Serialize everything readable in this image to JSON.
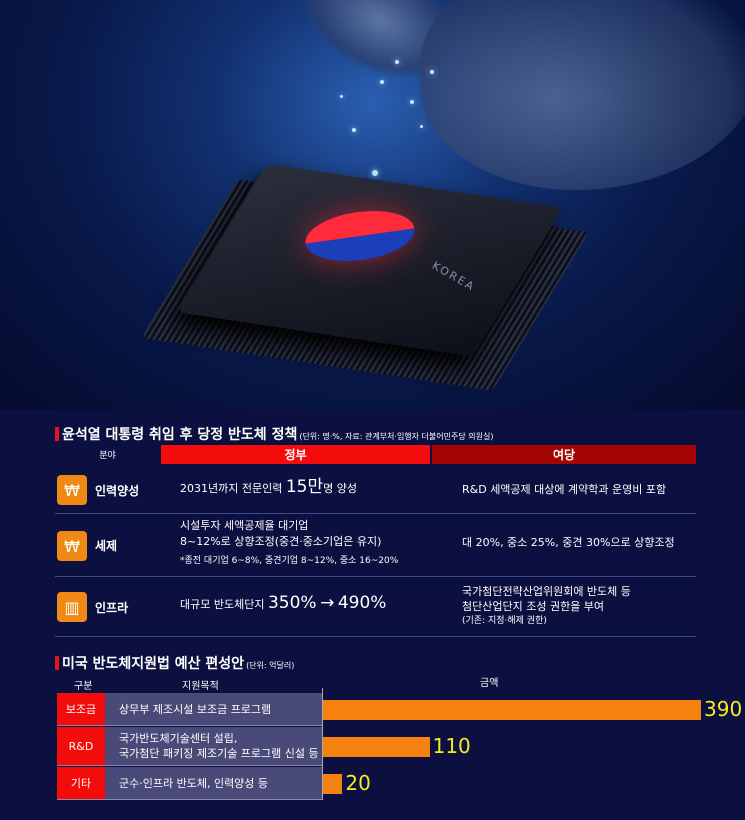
{
  "hero": {
    "chip_text": "KOREA"
  },
  "policy": {
    "title": "윤석열 대통령 취임 후 당정 반도체 정책",
    "unit_note": "(단위: 명·%, 자료: 관계부처·임행자 더불어민주당 의원실)",
    "headers": {
      "field": "분야",
      "gov": "정부",
      "party": "여당"
    },
    "colors": {
      "gov": "#f40b0b",
      "party": "#a30404",
      "icon_bg": "#f08a14"
    },
    "rows": [
      {
        "icon": "person-won-icon",
        "field": "인력양성",
        "gov_pre": "2031년까지 전문인력 ",
        "gov_big": "15만",
        "gov_post": "명 양성",
        "party": "R&D 세액공제 대상에 계약학과 운영비 포함"
      },
      {
        "icon": "money-bag-icon",
        "field": "세제",
        "gov_line1": "시설투자 세액공제율 대기업",
        "gov_line2": "8~12%로 상향조정(중견·중소기업은 유지)",
        "gov_note": "*종전 대기업 6~8%, 중견기업 8~12%, 중소 16~20%",
        "party": "대 20%, 중소 25%, 중견 30%으로 상향조정"
      },
      {
        "icon": "factory-icon",
        "field": "인프라",
        "gov_pre": "대규모 반도체단지 ",
        "gov_from": "350%",
        "gov_arrow": "→",
        "gov_to": "490%",
        "party_line1": "국가첨단전략산업위원회에 반도체 등",
        "party_line2": "첨단산업단지 조성 권한을 부여",
        "party_note": "(기존: 지정·해제 권한)"
      }
    ]
  },
  "chart_data": {
    "type": "bar",
    "title": "미국 반도체지원법 예산 편성안",
    "unit_note": "(단위: 억달러)",
    "headers": {
      "category": "구분",
      "purpose": "지원목적",
      "amount": "금액"
    },
    "categories": [
      "보조금",
      "R&D",
      "기타"
    ],
    "purposes": [
      [
        "상무부 제조시설 보조금 프로그램"
      ],
      [
        "국가반도체기술센터 설립,",
        "국가첨단 패키징 제조기술 프로그램 신설 등"
      ],
      [
        "군수·인프라 반도체, 인력양성 등"
      ]
    ],
    "values": [
      390,
      110,
      20
    ],
    "orientation": "horizontal",
    "colors": {
      "bar": "#f5820f",
      "label": "#f6ea20",
      "category_bg": "#f40b0b"
    }
  }
}
